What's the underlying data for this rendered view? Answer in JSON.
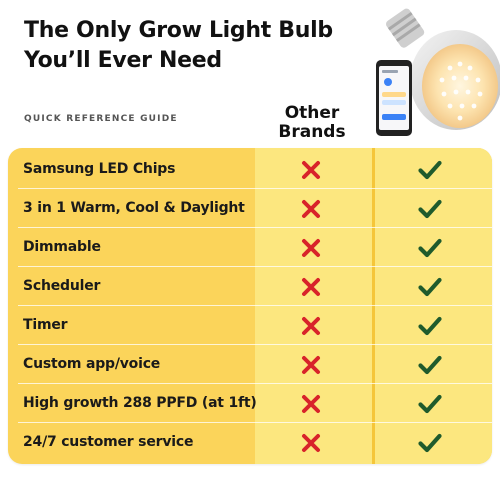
{
  "headline": {
    "line1": "The Only Grow Light Bulb",
    "line2": "You’ll Ever Need"
  },
  "guide_label": "QUICK REFERENCE GUIDE",
  "columns": {
    "other_line1": "Other",
    "other_line2": "Brands"
  },
  "product_image": {
    "icon": "grow-light-bulb-with-phone-app"
  },
  "colors": {
    "table_bg": "#fbd45a",
    "column_bg": "#fce77f",
    "cross": "#d8232a",
    "check": "#1f5b2c"
  },
  "features": [
    {
      "label": "Samsung LED Chips",
      "other": "cross-icon",
      "ours": "check-icon"
    },
    {
      "label": "3 in 1 Warm, Cool & Daylight",
      "other": "cross-icon",
      "ours": "check-icon"
    },
    {
      "label": "Dimmable",
      "other": "cross-icon",
      "ours": "check-icon"
    },
    {
      "label": "Scheduler",
      "other": "cross-icon",
      "ours": "check-icon"
    },
    {
      "label": "Timer",
      "other": "cross-icon",
      "ours": "check-icon"
    },
    {
      "label": "Custom app/voice",
      "other": "cross-icon",
      "ours": "check-icon"
    },
    {
      "label": "High growth 288 PPFD (at 1ft)",
      "other": "cross-icon",
      "ours": "check-icon"
    },
    {
      "label": "24/7 customer service",
      "other": "cross-icon",
      "ours": "check-icon"
    }
  ]
}
